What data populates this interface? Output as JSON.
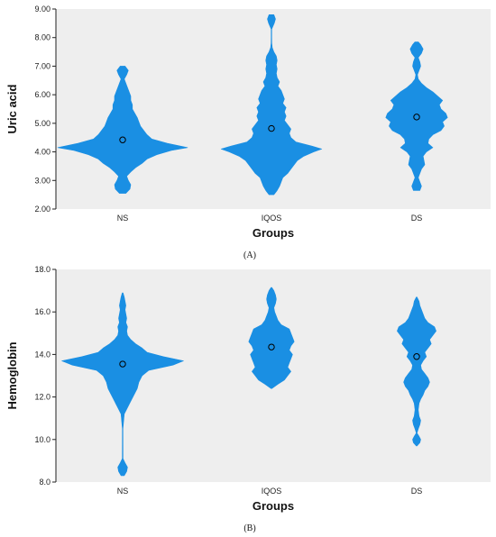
{
  "chart_data": [
    {
      "type": "violin",
      "panel_label": "(A)",
      "xlabel": "Groups",
      "ylabel": "Uric acid",
      "categories": [
        "NS",
        "IQOS",
        "DS"
      ],
      "ylim": [
        2.0,
        9.0
      ],
      "yticks": [
        "2.00",
        "3.00",
        "4.00",
        "5.00",
        "6.00",
        "7.00",
        "8.00",
        "9.00"
      ],
      "grid": false,
      "background": "#eeeeee",
      "violin_color": "#1a8fe3",
      "means": [
        4.42,
        4.82,
        5.22
      ],
      "density": [
        [
          [
            2.55,
            0.04
          ],
          [
            2.7,
            0.09
          ],
          [
            2.85,
            0.1
          ],
          [
            3.0,
            0.07
          ],
          [
            3.15,
            0.05
          ],
          [
            3.3,
            0.1
          ],
          [
            3.45,
            0.16
          ],
          [
            3.6,
            0.24
          ],
          [
            3.75,
            0.3
          ],
          [
            3.9,
            0.42
          ],
          [
            4.05,
            0.6
          ],
          [
            4.15,
            0.8
          ],
          [
            4.3,
            0.55
          ],
          [
            4.45,
            0.36
          ],
          [
            4.6,
            0.3
          ],
          [
            4.75,
            0.26
          ],
          [
            4.9,
            0.22
          ],
          [
            5.05,
            0.2
          ],
          [
            5.2,
            0.18
          ],
          [
            5.35,
            0.15
          ],
          [
            5.5,
            0.12
          ],
          [
            5.65,
            0.12
          ],
          [
            5.8,
            0.1
          ],
          [
            5.95,
            0.1
          ],
          [
            6.1,
            0.08
          ],
          [
            6.25,
            0.06
          ],
          [
            6.4,
            0.04
          ],
          [
            6.55,
            0.02
          ],
          [
            6.7,
            0.05
          ],
          [
            6.85,
            0.07
          ],
          [
            7.0,
            0.03
          ]
        ],
        [
          [
            2.5,
            0.03
          ],
          [
            2.65,
            0.07
          ],
          [
            2.8,
            0.1
          ],
          [
            2.95,
            0.12
          ],
          [
            3.1,
            0.14
          ],
          [
            3.25,
            0.2
          ],
          [
            3.4,
            0.24
          ],
          [
            3.55,
            0.28
          ],
          [
            3.7,
            0.32
          ],
          [
            3.85,
            0.4
          ],
          [
            4.0,
            0.52
          ],
          [
            4.1,
            0.62
          ],
          [
            4.2,
            0.5
          ],
          [
            4.35,
            0.3
          ],
          [
            4.5,
            0.24
          ],
          [
            4.65,
            0.22
          ],
          [
            4.8,
            0.24
          ],
          [
            4.95,
            0.2
          ],
          [
            5.1,
            0.16
          ],
          [
            5.25,
            0.18
          ],
          [
            5.4,
            0.16
          ],
          [
            5.55,
            0.18
          ],
          [
            5.7,
            0.14
          ],
          [
            5.85,
            0.16
          ],
          [
            6.0,
            0.14
          ],
          [
            6.15,
            0.12
          ],
          [
            6.3,
            0.08
          ],
          [
            6.45,
            0.1
          ],
          [
            6.6,
            0.07
          ],
          [
            6.75,
            0.06
          ],
          [
            6.9,
            0.07
          ],
          [
            7.05,
            0.06
          ],
          [
            7.2,
            0.07
          ],
          [
            7.35,
            0.06
          ],
          [
            7.5,
            0.03
          ],
          [
            7.65,
            0.01
          ],
          [
            7.8,
            0.005
          ],
          [
            8.0,
            0.003
          ],
          [
            8.3,
            0.003
          ],
          [
            8.5,
            0.035
          ],
          [
            8.65,
            0.05
          ],
          [
            8.8,
            0.03
          ]
        ],
        [
          [
            2.65,
            0.04
          ],
          [
            2.8,
            0.06
          ],
          [
            2.95,
            0.04
          ],
          [
            3.1,
            0.02
          ],
          [
            3.25,
            0.04
          ],
          [
            3.4,
            0.06
          ],
          [
            3.55,
            0.1
          ],
          [
            3.7,
            0.09
          ],
          [
            3.85,
            0.08
          ],
          [
            4.0,
            0.12
          ],
          [
            4.15,
            0.2
          ],
          [
            4.3,
            0.14
          ],
          [
            4.45,
            0.15
          ],
          [
            4.6,
            0.2
          ],
          [
            4.75,
            0.3
          ],
          [
            4.9,
            0.34
          ],
          [
            5.05,
            0.32
          ],
          [
            5.2,
            0.38
          ],
          [
            5.35,
            0.36
          ],
          [
            5.5,
            0.3
          ],
          [
            5.65,
            0.28
          ],
          [
            5.8,
            0.32
          ],
          [
            5.95,
            0.26
          ],
          [
            6.1,
            0.2
          ],
          [
            6.25,
            0.12
          ],
          [
            6.4,
            0.06
          ],
          [
            6.55,
            0.02
          ],
          [
            6.7,
            0.01
          ],
          [
            6.85,
            0.03
          ],
          [
            7.0,
            0.05
          ],
          [
            7.15,
            0.04
          ],
          [
            7.3,
            0.02
          ],
          [
            7.45,
            0.06
          ],
          [
            7.6,
            0.08
          ],
          [
            7.75,
            0.05
          ],
          [
            7.85,
            0.02
          ]
        ]
      ]
    },
    {
      "type": "violin",
      "panel_label": "(B)",
      "xlabel": "Groups",
      "ylabel": "Hemoglobin",
      "categories": [
        "NS",
        "IQOS",
        "DS"
      ],
      "ylim": [
        8.0,
        18.0
      ],
      "yticks": [
        "8.0",
        "10.0",
        "12.0",
        "14.0",
        "16.0",
        "18.0"
      ],
      "grid": false,
      "background": "#eeeeee",
      "violin_color": "#1a8fe3",
      "means": [
        13.55,
        14.35,
        13.9
      ],
      "density": [
        [
          [
            8.3,
            0.02
          ],
          [
            8.5,
            0.05
          ],
          [
            8.7,
            0.06
          ],
          [
            8.9,
            0.03
          ],
          [
            9.1,
            0.005
          ],
          [
            10.5,
            0.003
          ],
          [
            11.2,
            0.02
          ],
          [
            11.5,
            0.06
          ],
          [
            11.8,
            0.1
          ],
          [
            12.1,
            0.14
          ],
          [
            12.4,
            0.18
          ],
          [
            12.7,
            0.2
          ],
          [
            13.0,
            0.24
          ],
          [
            13.25,
            0.32
          ],
          [
            13.5,
            0.62
          ],
          [
            13.7,
            0.75
          ],
          [
            13.9,
            0.5
          ],
          [
            14.1,
            0.3
          ],
          [
            14.3,
            0.24
          ],
          [
            14.5,
            0.16
          ],
          [
            14.7,
            0.1
          ],
          [
            14.9,
            0.06
          ],
          [
            15.1,
            0.05
          ],
          [
            15.3,
            0.06
          ],
          [
            15.5,
            0.04
          ],
          [
            15.7,
            0.05
          ],
          [
            15.9,
            0.04
          ],
          [
            16.1,
            0.03
          ],
          [
            16.3,
            0.04
          ],
          [
            16.5,
            0.03
          ],
          [
            16.7,
            0.02
          ],
          [
            16.9,
            0.005
          ]
        ],
        [
          [
            12.4,
            0.005
          ],
          [
            12.6,
            0.08
          ],
          [
            12.8,
            0.16
          ],
          [
            13.0,
            0.2
          ],
          [
            13.2,
            0.24
          ],
          [
            13.4,
            0.2
          ],
          [
            13.6,
            0.22
          ],
          [
            13.8,
            0.24
          ],
          [
            14.0,
            0.26
          ],
          [
            14.2,
            0.22
          ],
          [
            14.4,
            0.24
          ],
          [
            14.6,
            0.28
          ],
          [
            14.8,
            0.26
          ],
          [
            15.0,
            0.24
          ],
          [
            15.2,
            0.22
          ],
          [
            15.4,
            0.12
          ],
          [
            15.6,
            0.08
          ],
          [
            15.8,
            0.06
          ],
          [
            16.0,
            0.04
          ],
          [
            16.2,
            0.03
          ],
          [
            16.4,
            0.05
          ],
          [
            16.6,
            0.06
          ],
          [
            16.8,
            0.05
          ],
          [
            17.0,
            0.03
          ],
          [
            17.15,
            0.005
          ]
        ],
        [
          [
            9.7,
            0.005
          ],
          [
            9.85,
            0.04
          ],
          [
            10.0,
            0.05
          ],
          [
            10.15,
            0.03
          ],
          [
            10.3,
            0.005
          ],
          [
            10.5,
            0.02
          ],
          [
            10.7,
            0.04
          ],
          [
            10.9,
            0.05
          ],
          [
            11.1,
            0.03
          ],
          [
            11.4,
            0.02
          ],
          [
            11.7,
            0.03
          ],
          [
            11.9,
            0.05
          ],
          [
            12.1,
            0.08
          ],
          [
            12.3,
            0.1
          ],
          [
            12.5,
            0.14
          ],
          [
            12.7,
            0.16
          ],
          [
            12.9,
            0.14
          ],
          [
            13.1,
            0.1
          ],
          [
            13.3,
            0.06
          ],
          [
            13.5,
            0.05
          ],
          [
            13.7,
            0.08
          ],
          [
            13.9,
            0.12
          ],
          [
            14.1,
            0.1
          ],
          [
            14.3,
            0.14
          ],
          [
            14.5,
            0.18
          ],
          [
            14.7,
            0.16
          ],
          [
            14.9,
            0.2
          ],
          [
            15.1,
            0.24
          ],
          [
            15.3,
            0.22
          ],
          [
            15.5,
            0.14
          ],
          [
            15.7,
            0.1
          ],
          [
            15.9,
            0.08
          ],
          [
            16.1,
            0.06
          ],
          [
            16.3,
            0.04
          ],
          [
            16.5,
            0.03
          ],
          [
            16.7,
            0.005
          ]
        ]
      ]
    }
  ]
}
